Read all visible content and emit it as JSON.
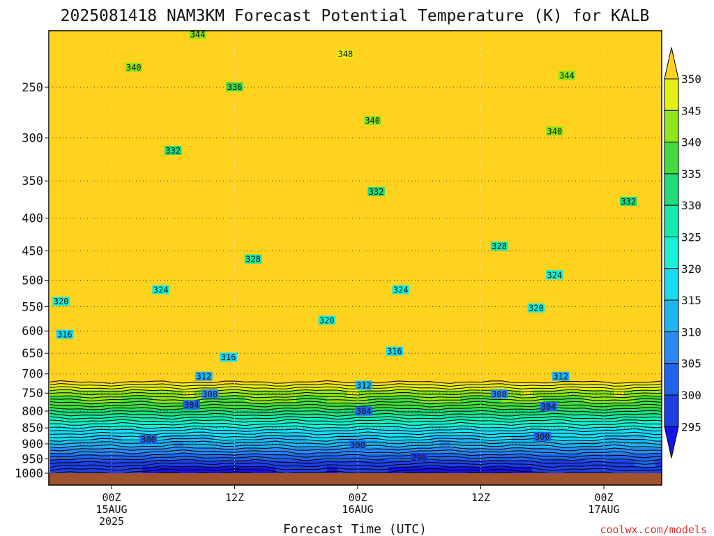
{
  "chart_data": {
    "type": "contour",
    "title": "2025081418 NAM3KM Forecast Potential Temperature (K) for KALB",
    "xlabel": "Forecast Time (UTC)",
    "ylabel": "",
    "y_scale": "log",
    "y_reversed": true,
    "ylim": [
      1000,
      200
    ],
    "y_ticks": [
      "250",
      "300",
      "350",
      "400",
      "450",
      "500",
      "550",
      "600",
      "650",
      "700",
      "750",
      "800",
      "850",
      "900",
      "950",
      "1000"
    ],
    "xlim_hours": [
      -5,
      45
    ],
    "x_ticks": [
      {
        "hour": 0,
        "label": [
          "00Z",
          "15AUG",
          "2025"
        ]
      },
      {
        "hour": 10,
        "label": [
          "12Z"
        ]
      },
      {
        "hour": 20,
        "label": [
          "00Z",
          "16AUG"
        ]
      },
      {
        "hour": 30,
        "label": [
          "12Z"
        ]
      },
      {
        "hour": 40,
        "label": [
          "00Z",
          "17AUG"
        ]
      }
    ],
    "grid": "dotted",
    "colorbar": {
      "levels": [
        "295",
        "300",
        "305",
        "310",
        "315",
        "320",
        "325",
        "330",
        "335",
        "340",
        "345",
        "350"
      ],
      "colors": [
        "#1414e6",
        "#1c3fe6",
        "#1f66ec",
        "#2b8af0",
        "#1fb4f2",
        "#18dcf5",
        "#16f2d6",
        "#14ebae",
        "#1cdf7c",
        "#42dc3e",
        "#8ee61c",
        "#e6f014",
        "#ffd21e"
      ]
    },
    "contour_labels": [
      {
        "text": "344",
        "hour": 7,
        "p": 207
      },
      {
        "text": "348",
        "hour": 19,
        "p": 222
      },
      {
        "text": "340",
        "hour": 1.8,
        "p": 233
      },
      {
        "text": "336",
        "hour": 10,
        "p": 250
      },
      {
        "text": "344",
        "hour": 37,
        "p": 240
      },
      {
        "text": "340",
        "hour": 21.2,
        "p": 282
      },
      {
        "text": "340",
        "hour": 36,
        "p": 293
      },
      {
        "text": "332",
        "hour": 5,
        "p": 314
      },
      {
        "text": "332",
        "hour": 21.5,
        "p": 364
      },
      {
        "text": "332",
        "hour": 42,
        "p": 377
      },
      {
        "text": "328",
        "hour": 11.5,
        "p": 464
      },
      {
        "text": "328",
        "hour": 31.5,
        "p": 443
      },
      {
        "text": "324",
        "hour": 4,
        "p": 518
      },
      {
        "text": "324",
        "hour": 23.5,
        "p": 518
      },
      {
        "text": "324",
        "hour": 36,
        "p": 491
      },
      {
        "text": "320",
        "hour": -4.1,
        "p": 540
      },
      {
        "text": "320",
        "hour": 17.5,
        "p": 578
      },
      {
        "text": "320",
        "hour": 34.5,
        "p": 553
      },
      {
        "text": "316",
        "hour": -3.8,
        "p": 608
      },
      {
        "text": "316",
        "hour": 9.5,
        "p": 660
      },
      {
        "text": "316",
        "hour": 23,
        "p": 646
      },
      {
        "text": "312",
        "hour": 7.5,
        "p": 707
      },
      {
        "text": "312",
        "hour": 20.5,
        "p": 730
      },
      {
        "text": "312",
        "hour": 36.5,
        "p": 707
      },
      {
        "text": "308",
        "hour": 8,
        "p": 753
      },
      {
        "text": "308",
        "hour": 31.5,
        "p": 753
      },
      {
        "text": "304",
        "hour": 6.5,
        "p": 783
      },
      {
        "text": "304",
        "hour": 20.5,
        "p": 801
      },
      {
        "text": "304",
        "hour": 35.5,
        "p": 788
      },
      {
        "text": "300",
        "hour": 3,
        "p": 887
      },
      {
        "text": "300",
        "hour": 20,
        "p": 905
      },
      {
        "text": "300",
        "hour": 35,
        "p": 878
      },
      {
        "text": "296",
        "hour": 25,
        "p": 946
      }
    ],
    "surface_color": "#a0522d"
  },
  "credit": "coolwx.com/models"
}
